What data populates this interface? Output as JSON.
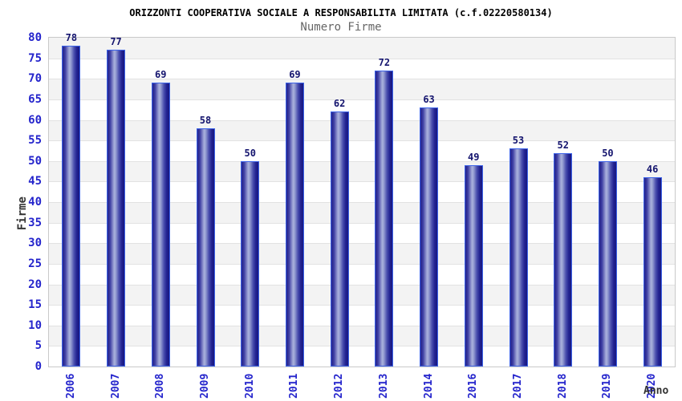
{
  "chart_data": {
    "type": "bar",
    "title": "ORIZZONTI COOPERATIVA SOCIALE A RESPONSABILITA LIMITATA (c.f.02220580134)",
    "subtitle": "Numero Firme",
    "categories": [
      "2006",
      "2007",
      "2008",
      "2009",
      "2010",
      "2011",
      "2012",
      "2013",
      "2014",
      "2016",
      "2017",
      "2018",
      "2019",
      "2020"
    ],
    "values": [
      78,
      77,
      69,
      58,
      50,
      69,
      62,
      72,
      63,
      49,
      53,
      52,
      50,
      46
    ],
    "xlabel": "Anno",
    "ylabel": "Firme",
    "ylim": [
      0,
      80
    ],
    "ytick_step": 5,
    "yticks": [
      0,
      5,
      10,
      15,
      20,
      25,
      30,
      35,
      40,
      45,
      50,
      55,
      60,
      65,
      70,
      75,
      80
    ],
    "grid": "horizontal-bands-every-5",
    "legend": "none",
    "bar_value_labels": true,
    "colors": {
      "bar_fill_dark": "#23238c",
      "bar_fill_mid": "#3c3ca2",
      "bar_fill_light": "#a9b0dc",
      "bar_border": "#3d63e8",
      "axis_text": "#2424cc",
      "value_label": "#14146e",
      "band_gray": "#f3f3f3",
      "gridline": "#e2e2e2",
      "plot_border": "#c9c9c9",
      "title_color": "#000000",
      "subtitle_color": "#666666",
      "axis_title_color": "#333333"
    }
  }
}
